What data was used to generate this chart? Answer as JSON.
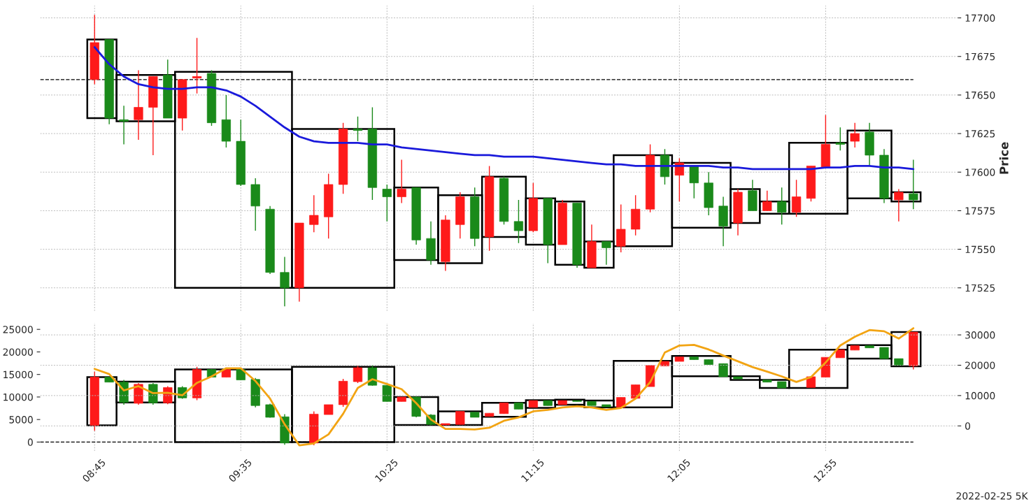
{
  "chart_data": [
    {
      "type": "candlestick",
      "ylabel": "Price",
      "xlim": [
        8.44,
        13.67
      ],
      "ylim": [
        17510,
        17708
      ],
      "xticks": [
        {
          "value": 8.75,
          "label": null
        },
        {
          "value": 9.5833,
          "label": null
        },
        {
          "value": 10.4167,
          "label": null
        },
        {
          "value": 11.25,
          "label": null
        },
        {
          "value": 12.0833,
          "label": null
        },
        {
          "value": 12.9167,
          "label": null
        }
      ],
      "yticks": [
        17525,
        17550,
        17575,
        17600,
        17625,
        17650,
        17675,
        17700
      ],
      "tick_labels": "y",
      "grid": true,
      "ref_lines": [
        {
          "axis": "y",
          "value": 17660,
          "color": "#000000",
          "line_style": "dashed"
        }
      ],
      "x": [
        8.75,
        8.8333,
        8.9167,
        9.0,
        9.0833,
        9.1667,
        9.25,
        9.3333,
        9.4167,
        9.5,
        9.5833,
        9.6667,
        9.75,
        9.8333,
        9.9167,
        10.0,
        10.0833,
        10.1667,
        10.25,
        10.3333,
        10.4167,
        10.5,
        10.5833,
        10.6667,
        10.75,
        10.8333,
        10.9167,
        11.0,
        11.0833,
        11.1667,
        11.25,
        11.3333,
        11.4167,
        11.5,
        11.5833,
        11.6667,
        11.75,
        11.8333,
        11.9167,
        12.0,
        12.0833,
        12.1667,
        12.25,
        12.3333,
        12.4167,
        12.5,
        12.5833,
        12.6667,
        12.75,
        12.8333,
        12.9167,
        13.0,
        13.0833,
        13.1667,
        13.25,
        13.3333,
        13.4167
      ],
      "ohlc": [
        [
          17660,
          17702,
          17657,
          17684
        ],
        [
          17686,
          17686,
          17631,
          17635
        ],
        [
          17634,
          17643,
          17618,
          17633
        ],
        [
          17634,
          17666,
          17621,
          17642
        ],
        [
          17642,
          17662,
          17611,
          17662
        ],
        [
          17663,
          17673,
          17635,
          17635
        ],
        [
          17635,
          17660,
          17627,
          17660
        ],
        [
          17661,
          17687,
          17651,
          17662
        ],
        [
          17664,
          17666,
          17630,
          17632
        ],
        [
          17634,
          17650,
          17616,
          17620
        ],
        [
          17620,
          17634,
          17591,
          17592
        ],
        [
          17592,
          17596,
          17562,
          17578
        ],
        [
          17576,
          17578,
          17534,
          17535
        ],
        [
          17535,
          17545,
          17513,
          17525
        ],
        [
          17525,
          17567,
          17516,
          17567
        ],
        [
          17566,
          17585,
          17561,
          17572
        ],
        [
          17571,
          17599,
          17557,
          17592
        ],
        [
          17592,
          17632,
          17586,
          17628
        ],
        [
          17628,
          17636,
          17620,
          17627
        ],
        [
          17628,
          17642,
          17582,
          17590
        ],
        [
          17589,
          17592,
          17568,
          17584
        ],
        [
          17584,
          17608,
          17580,
          17589
        ],
        [
          17590,
          17590,
          17553,
          17556
        ],
        [
          17557,
          17568,
          17540,
          17543
        ],
        [
          17542,
          17572,
          17536,
          17569
        ],
        [
          17566,
          17587,
          17557,
          17584
        ],
        [
          17584,
          17590,
          17552,
          17557
        ],
        [
          17558,
          17604,
          17549,
          17597
        ],
        [
          17596,
          17597,
          17566,
          17568
        ],
        [
          17568,
          17582,
          17554,
          17562
        ],
        [
          17562,
          17593,
          17561,
          17583
        ],
        [
          17583,
          17583,
          17541,
          17553
        ],
        [
          17553,
          17582,
          17553,
          17580
        ],
        [
          17580,
          17580,
          17538,
          17540
        ],
        [
          17538,
          17566,
          17538,
          17555
        ],
        [
          17555,
          17555,
          17540,
          17551
        ],
        [
          17552,
          17579,
          17548,
          17563
        ],
        [
          17563,
          17585,
          17559,
          17576
        ],
        [
          17576,
          17618,
          17574,
          17611
        ],
        [
          17611,
          17615,
          17592,
          17597
        ],
        [
          17598,
          17609,
          17581,
          17606
        ],
        [
          17604,
          17604,
          17583,
          17593
        ],
        [
          17593,
          17600,
          17572,
          17577
        ],
        [
          17578,
          17584,
          17552,
          17565
        ],
        [
          17567,
          17589,
          17559,
          17587
        ],
        [
          17588,
          17595,
          17575,
          17575
        ],
        [
          17575,
          17588,
          17575,
          17581
        ],
        [
          17581,
          17590,
          17566,
          17574
        ],
        [
          17574,
          17595,
          17571,
          17584
        ],
        [
          17583,
          17604,
          17581,
          17604
        ],
        [
          17603,
          17637,
          17603,
          17618
        ],
        [
          17619,
          17629,
          17614,
          17618
        ],
        [
          17620,
          17632,
          17616,
          17625
        ],
        [
          17626,
          17632,
          17604,
          17611
        ],
        [
          17611,
          17615,
          17580,
          17583
        ],
        [
          17582,
          17589,
          17568,
          17587
        ],
        [
          17586,
          17608,
          17576,
          17582
        ]
      ],
      "colors": [
        "#fe1a1a",
        "#1a8a1a",
        "#1a8a1a",
        "#fe1a1a",
        "#fe1a1a",
        "#1a8a1a",
        "#fe1a1a",
        "#fe1a1a",
        "#1a8a1a",
        "#1a8a1a",
        "#1a8a1a",
        "#1a8a1a",
        "#1a8a1a",
        "#1a8a1a",
        "#fe1a1a",
        "#fe1a1a",
        "#fe1a1a",
        "#fe1a1a",
        "#1a8a1a",
        "#1a8a1a",
        "#1a8a1a",
        "#fe1a1a",
        "#1a8a1a",
        "#1a8a1a",
        "#fe1a1a",
        "#fe1a1a",
        "#1a8a1a",
        "#fe1a1a",
        "#1a8a1a",
        "#1a8a1a",
        "#fe1a1a",
        "#1a8a1a",
        "#fe1a1a",
        "#1a8a1a",
        "#fe1a1a",
        "#1a8a1a",
        "#fe1a1a",
        "#fe1a1a",
        "#fe1a1a",
        "#1a8a1a",
        "#fe1a1a",
        "#1a8a1a",
        "#1a8a1a",
        "#1a8a1a",
        "#fe1a1a",
        "#1a8a1a",
        "#fe1a1a",
        "#1a8a1a",
        "#fe1a1a",
        "#fe1a1a",
        "#fe1a1a",
        "#1a8a1a",
        "#fe1a1a",
        "#1a8a1a",
        "#1a8a1a",
        "#fe1a1a",
        "#1a8a1a"
      ],
      "series": [
        {
          "type": "line",
          "color": "#1a1adb",
          "x": [
            8.75,
            8.8333,
            8.9167,
            9.0,
            9.0833,
            9.1667,
            9.25,
            9.3333,
            9.4167,
            9.5,
            9.5833,
            9.6667,
            9.75,
            9.8333,
            9.9167,
            10.0,
            10.0833,
            10.1667,
            10.25,
            10.3333,
            10.4167,
            10.5,
            10.5833,
            10.6667,
            10.75,
            10.8333,
            10.9167,
            11.0,
            11.0833,
            11.1667,
            11.25,
            11.3333,
            11.4167,
            11.5,
            11.5833,
            11.6667,
            11.75,
            11.8333,
            11.9167,
            12.0,
            12.0833,
            12.1667,
            12.25,
            12.3333,
            12.4167,
            12.5,
            12.5833,
            12.6667,
            12.75,
            12.8333,
            12.9167,
            13.0,
            13.0833,
            13.1667,
            13.25,
            13.3333,
            13.4167
          ],
          "values": [
            17681,
            17670,
            17662,
            17657,
            17655,
            17654,
            17654,
            17655,
            17655,
            17653,
            17649,
            17643,
            17636,
            17629,
            17623,
            17620,
            17619,
            17619,
            17619,
            17618,
            17618,
            17616,
            17615,
            17614,
            17613,
            17612,
            17611,
            17611,
            17610,
            17610,
            17610,
            17609,
            17608,
            17607,
            17606,
            17605,
            17605,
            17604,
            17604,
            17604,
            17604,
            17604,
            17604,
            17603,
            17603,
            17602,
            17602,
            17602,
            17602,
            17602,
            17603,
            17603,
            17604,
            17604,
            17603,
            17603,
            17602
          ]
        },
        {
          "type": "bar",
          "color": "#000000",
          "x": [
            8.7917,
            9.0417,
            9.5417,
            10.1667,
            10.5833,
            10.8333,
            11.0833,
            11.2917,
            11.4583,
            11.625,
            11.875,
            12.2083,
            12.4583,
            12.625,
            12.875,
            13.1667,
            13.375
          ],
          "base": [
            17635,
            17633,
            17525,
            17525,
            17543,
            17541,
            17558,
            17553,
            17540,
            17538,
            17552,
            17564,
            17567,
            17573,
            17573,
            17583,
            17581
          ],
          "values": [
            51,
            30,
            140,
            103,
            47,
            44,
            39,
            30,
            41,
            17,
            59,
            42,
            22,
            8,
            46,
            44,
            6
          ]
        }
      ]
    },
    {
      "type": "candlestick",
      "xlim": [
        8.44,
        13.67
      ],
      "ylim": [
        -2000,
        26400
      ],
      "y2lim": [
        -8300,
        33900
      ],
      "xticks": [
        {
          "value": 8.75,
          "label": "08:45"
        },
        {
          "value": 9.5833,
          "label": "09:35"
        },
        {
          "value": 10.4167,
          "label": "10:25"
        },
        {
          "value": 11.25,
          "label": "11:15"
        },
        {
          "value": 12.0833,
          "label": "12:05"
        },
        {
          "value": 12.9167,
          "label": "12:55"
        }
      ],
      "yticks": [
        0,
        5000,
        10000,
        15000,
        20000,
        25000
      ],
      "y2ticks": [
        0,
        10000,
        20000,
        30000
      ],
      "grid": true,
      "ref_lines": [
        {
          "axis": "y",
          "value": 0,
          "color": "#000000",
          "line_style": "dashed"
        }
      ],
      "annotations": [
        "2022-02-25 5K"
      ],
      "x": [
        8.75,
        8.8333,
        8.9167,
        9.0,
        9.0833,
        9.1667,
        9.25,
        9.3333,
        9.4167,
        9.5,
        9.5833,
        9.6667,
        9.75,
        9.8333,
        10.0,
        10.0833,
        10.1667,
        10.25,
        10.3333,
        10.4167,
        10.5,
        10.5833,
        10.6667,
        10.75,
        10.8333,
        10.9167,
        11.0,
        11.0833,
        11.1667,
        11.25,
        11.3333,
        11.4167,
        11.5,
        11.5833,
        11.6667,
        11.75,
        11.8333,
        11.9167,
        12.0,
        12.0833,
        12.1667,
        12.25,
        12.3333,
        12.4167,
        12.5833,
        12.6667,
        12.8333,
        12.9167,
        13.0,
        13.0833,
        13.1667,
        13.25,
        13.3333,
        13.4167
      ],
      "ohlc": [
        [
          3700,
          15600,
          2500,
          14400
        ],
        [
          14400,
          14400,
          13300,
          13300
        ],
        [
          13300,
          13800,
          8300,
          8800
        ],
        [
          8600,
          13100,
          8300,
          12800
        ],
        [
          12800,
          13100,
          8300,
          8700
        ],
        [
          8700,
          12400,
          8400,
          12100
        ],
        [
          12100,
          12400,
          9600,
          9800
        ],
        [
          9800,
          16700,
          9300,
          16100
        ],
        [
          16100,
          16200,
          14400,
          14400
        ],
        [
          14400,
          16200,
          14400,
          16100
        ],
        [
          16100,
          16200,
          13800,
          13800
        ],
        [
          13900,
          14200,
          7700,
          8100
        ],
        [
          8300,
          8500,
          5400,
          5500
        ],
        [
          5600,
          6200,
          -600,
          -200
        ],
        [
          -200,
          6800,
          -700,
          6200
        ],
        [
          6100,
          8300,
          6100,
          8300
        ],
        [
          8300,
          14000,
          7800,
          13500
        ],
        [
          13400,
          16900,
          13100,
          16500
        ],
        [
          16500,
          17000,
          12500,
          12600
        ],
        [
          12600,
          12600,
          9000,
          9000
        ],
        [
          9000,
          10000,
          9000,
          10000
        ],
        [
          10000,
          10100,
          5500,
          5700
        ],
        [
          6000,
          6200,
          3700,
          3900
        ],
        [
          3800,
          4100,
          3800,
          4100
        ],
        [
          3900,
          6800,
          3900,
          6800
        ],
        [
          6600,
          6600,
          5500,
          5500
        ],
        [
          5700,
          6400,
          5700,
          6400
        ],
        [
          6300,
          8700,
          6300,
          8700
        ],
        [
          8700,
          8700,
          7300,
          7300
        ],
        [
          7700,
          9200,
          7700,
          9200
        ],
        [
          9200,
          9200,
          8100,
          8100
        ],
        [
          8300,
          9200,
          8300,
          9200
        ],
        [
          9200,
          9200,
          9000,
          9000
        ],
        [
          9000,
          9000,
          8100,
          8100
        ],
        [
          8300,
          8300,
          7800,
          7800
        ],
        [
          7700,
          9900,
          7700,
          9900
        ],
        [
          9700,
          12700,
          9700,
          12700
        ],
        [
          12300,
          17000,
          12300,
          17000
        ],
        [
          16900,
          17900,
          16900,
          17900
        ],
        [
          17900,
          18900,
          17900,
          18900
        ],
        [
          18900,
          18900,
          18300,
          18300
        ],
        [
          18300,
          18300,
          17200,
          17200
        ],
        [
          17400,
          17400,
          14500,
          14500
        ],
        [
          14500,
          14500,
          14000,
          14000
        ],
        [
          13800,
          13800,
          13300,
          13300
        ],
        [
          13400,
          13400,
          12000,
          12000
        ],
        [
          12100,
          14500,
          12100,
          14500
        ],
        [
          14400,
          18800,
          14400,
          18800
        ],
        [
          18700,
          20500,
          18700,
          20500
        ],
        [
          20400,
          21400,
          20400,
          21400
        ],
        [
          21400,
          21400,
          20900,
          20900
        ],
        [
          21000,
          21000,
          18500,
          18500
        ],
        [
          18500,
          18500,
          17000,
          17000
        ],
        [
          16900,
          24400,
          16100,
          24400
        ]
      ],
      "colors": [
        "#fe1a1a",
        "#1a8a1a",
        "#1a8a1a",
        "#fe1a1a",
        "#1a8a1a",
        "#fe1a1a",
        "#1a8a1a",
        "#fe1a1a",
        "#1a8a1a",
        "#fe1a1a",
        "#1a8a1a",
        "#1a8a1a",
        "#1a8a1a",
        "#1a8a1a",
        "#fe1a1a",
        "#fe1a1a",
        "#fe1a1a",
        "#fe1a1a",
        "#1a8a1a",
        "#1a8a1a",
        "#fe1a1a",
        "#1a8a1a",
        "#1a8a1a",
        "#fe1a1a",
        "#fe1a1a",
        "#1a8a1a",
        "#fe1a1a",
        "#fe1a1a",
        "#1a8a1a",
        "#fe1a1a",
        "#1a8a1a",
        "#fe1a1a",
        "#1a8a1a",
        "#1a8a1a",
        "#1a8a1a",
        "#fe1a1a",
        "#fe1a1a",
        "#fe1a1a",
        "#fe1a1a",
        "#fe1a1a",
        "#1a8a1a",
        "#1a8a1a",
        "#1a8a1a",
        "#1a8a1a",
        "#1a8a1a",
        "#1a8a1a",
        "#fe1a1a",
        "#fe1a1a",
        "#fe1a1a",
        "#fe1a1a",
        "#1a8a1a",
        "#1a8a1a",
        "#1a8a1a",
        "#fe1a1a"
      ],
      "series": [
        {
          "type": "line",
          "axis": "y2",
          "color": "#f2a413",
          "x": [
            8.75,
            8.8333,
            8.9167,
            9.0,
            9.0833,
            9.1667,
            9.25,
            9.3333,
            9.4167,
            9.5,
            9.5833,
            9.6667,
            9.75,
            9.8333,
            9.9167,
            10.0,
            10.0833,
            10.1667,
            10.25,
            10.3333,
            10.4167,
            10.5,
            10.5833,
            10.6667,
            10.75,
            10.8333,
            10.9167,
            11.0,
            11.0833,
            11.1667,
            11.25,
            11.3333,
            11.4167,
            11.5,
            11.5833,
            11.6667,
            11.75,
            11.8333,
            11.9167,
            12.0,
            12.0833,
            12.1667,
            12.25,
            12.3333,
            12.4167,
            12.5,
            12.5833,
            12.6667,
            12.75,
            12.8333,
            12.9167,
            13.0,
            13.0833,
            13.1667,
            13.25,
            13.3333,
            13.4167
          ],
          "values": [
            18800,
            17100,
            11700,
            13100,
            10800,
            10900,
            10100,
            14200,
            16300,
            19000,
            19000,
            14800,
            9000,
            500,
            -6400,
            -5800,
            -2800,
            4000,
            12500,
            15400,
            13800,
            12100,
            7500,
            2100,
            -1000,
            -1000,
            -1200,
            -600,
            1700,
            2800,
            4800,
            5300,
            6100,
            6500,
            6100,
            5300,
            5900,
            9000,
            14400,
            24200,
            26500,
            26700,
            25200,
            23200,
            21300,
            19400,
            17900,
            16300,
            14500,
            16100,
            20900,
            26500,
            29400,
            31600,
            31200,
            28800,
            32200
          ]
        },
        {
          "type": "bar",
          "color": "#000000",
          "x": [
            8.7917,
            9.0417,
            9.5417,
            10.1667,
            10.5833,
            10.8333,
            11.0833,
            11.2917,
            11.4583,
            11.625,
            11.875,
            12.2083,
            12.4583,
            12.625,
            12.875,
            13.1667,
            13.375
          ],
          "base": [
            3700,
            8800,
            0,
            0,
            3800,
            3800,
            5600,
            7600,
            8300,
            7700,
            7700,
            14600,
            13800,
            12000,
            12000,
            18500,
            16800
          ],
          "values": [
            10700,
            4600,
            16100,
            16700,
            6200,
            3000,
            3100,
            1700,
            1100,
            1500,
            10300,
            4500,
            800,
            1800,
            8500,
            3000,
            7600
          ]
        }
      ]
    }
  ]
}
